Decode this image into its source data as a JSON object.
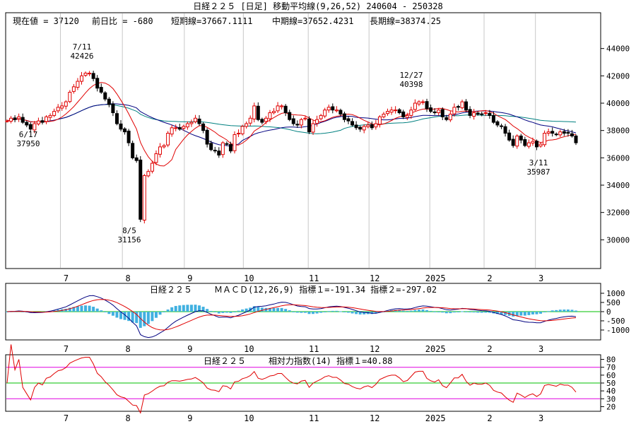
{
  "header": {
    "title": "日経２２５ [日足]  移動平均線(9,26,52)  240604 - 250328"
  },
  "info_line": {
    "current": "現在値 = 37120",
    "change": "前日比 = -680",
    "short_ma": "短期線=37667.1111",
    "mid_ma": "中期線=37652.4231",
    "long_ma": "長期線=38374.25"
  },
  "colors": {
    "up_candle": "#e00000",
    "down_candle": "#000000",
    "ma_short": "#e00000",
    "ma_mid": "#000080",
    "ma_long": "#008080",
    "macd_line": "#000080",
    "signal_line": "#e00000",
    "histogram": "#40b0e0",
    "rsi_line": "#e00000",
    "rsi_upper_band": "#e000e0",
    "rsi_mid_band": "#00c000",
    "zero_line": "#00c000"
  },
  "x_axis_labels": [
    "7",
    "8",
    "9",
    "10",
    "11",
    "12",
    "2025",
    "2",
    "3"
  ],
  "chart_data": [
    {
      "type": "candlestick",
      "ylim": [
        28000,
        46000
      ],
      "y_ticks": [
        "44000",
        "42000",
        "40000",
        "38000",
        "36000",
        "34000",
        "32000",
        "30000"
      ],
      "close_series": [
        38700,
        38900,
        38800,
        39000,
        38600,
        38400,
        38100,
        38500,
        38700,
        38600,
        39000,
        39100,
        39400,
        39700,
        39800,
        40100,
        40800,
        41200,
        41600,
        42000,
        42200,
        42200,
        41800,
        41100,
        40800,
        40300,
        39900,
        39300,
        38500,
        38100,
        37900,
        37100,
        36000,
        35800,
        31500,
        34700,
        35000,
        35600,
        36300,
        36800,
        36900,
        37800,
        38200,
        38200,
        38100,
        38300,
        38500,
        38600,
        38900,
        38500,
        38000,
        37000,
        36600,
        36500,
        36200,
        37100,
        37000,
        36500,
        37700,
        37800,
        38300,
        38500,
        38900,
        39800,
        38800,
        38600,
        38900,
        39300,
        39400,
        39800,
        39800,
        39300,
        38800,
        38500,
        38400,
        38800,
        38900,
        37900,
        38500,
        38800,
        39100,
        39500,
        39700,
        39500,
        39500,
        39200,
        38800,
        38700,
        38400,
        38200,
        38100,
        38300,
        38400,
        38200,
        38500,
        39000,
        39200,
        39400,
        39500,
        39500,
        39300,
        39000,
        39100,
        39500,
        40000,
        40100,
        40100,
        39600,
        39400,
        39300,
        39500,
        39000,
        38800,
        39200,
        39700,
        39700,
        40100,
        39500,
        39100,
        39300,
        39200,
        39200,
        39300,
        39100,
        38600,
        38400,
        38300,
        37800,
        37300,
        36900,
        37600,
        37300,
        36900,
        37100,
        37200,
        36800,
        37000,
        37800,
        37900,
        37800,
        37700,
        37900,
        37800,
        37800,
        37600,
        37100
      ],
      "annotations": [
        {
          "date": "6/17",
          "value": "37950"
        },
        {
          "date": "7/11",
          "value": "42426"
        },
        {
          "date": "8/5",
          "value": "31156"
        },
        {
          "date": "12/27",
          "value": "40398"
        },
        {
          "date": "3/11",
          "value": "35987"
        }
      ]
    },
    {
      "type": "macd",
      "title": "日経２２５",
      "subtitle": "ＭＡＣＤ(12,26,9) 指標１=-191.34  指標２=-297.02",
      "ylim": [
        -1500,
        1500
      ],
      "y_ticks": [
        "1000",
        "500",
        "0",
        "-500",
        "-1000"
      ],
      "last_macd": -191.34,
      "last_signal": -297.02
    },
    {
      "type": "rsi",
      "title": "日経２２５",
      "subtitle": "相対力指数(14) 指標１=40.88",
      "ylim": [
        15,
        85
      ],
      "y_ticks": [
        "80",
        "70",
        "60",
        "50",
        "40",
        "30",
        "20"
      ],
      "bands": [
        70,
        50,
        30
      ],
      "last_value": 40.88
    }
  ]
}
